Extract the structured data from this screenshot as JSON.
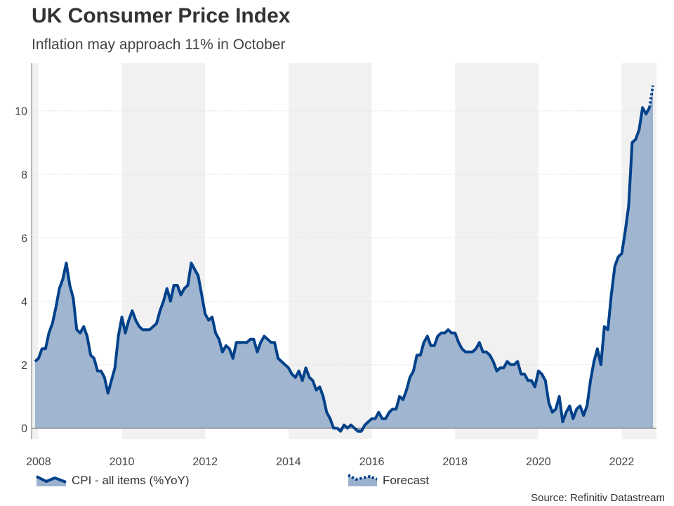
{
  "title": "UK Consumer Price Index",
  "subtitle": "Inflation may approach 11% in October",
  "source": "Source: Refinitiv Datastream",
  "colors": {
    "line": "#00418a",
    "fill": "#9bb1cd",
    "band": "#f1f1f1",
    "grid": "#dddddd"
  },
  "chart_data": {
    "type": "area",
    "title": "UK Consumer Price Index",
    "subtitle": "Inflation may approach 11% in October",
    "xlabel": "",
    "ylabel": "",
    "xlim": [
      "2007-11",
      "2022-11"
    ],
    "ylim": [
      -0.35,
      11.5
    ],
    "x_ticks": [
      "2008",
      "2010",
      "2012",
      "2014",
      "2016",
      "2018",
      "2020",
      "2022"
    ],
    "y_ticks": [
      "0",
      "2",
      "4",
      "6",
      "8",
      "10"
    ],
    "grid": "horizontal dotted",
    "shaded_bands": [
      [
        "2006",
        "2008"
      ],
      [
        "2010",
        "2012"
      ],
      [
        "2014",
        "2016"
      ],
      [
        "2018",
        "2020"
      ],
      [
        "2022",
        "2024"
      ]
    ],
    "legend_position": "bottom",
    "legend": [
      "CPI - all items (%YoY)",
      "Forecast"
    ],
    "series": [
      {
        "name": "CPI - all items (%YoY)",
        "start": "2007-12",
        "frequency": "monthly",
        "values": [
          2.1,
          2.2,
          2.5,
          2.5,
          3.0,
          3.3,
          3.8,
          4.4,
          4.7,
          5.2,
          4.5,
          4.1,
          3.1,
          3.0,
          3.2,
          2.9,
          2.3,
          2.2,
          1.8,
          1.8,
          1.6,
          1.1,
          1.5,
          1.9,
          2.9,
          3.5,
          3.0,
          3.4,
          3.7,
          3.4,
          3.2,
          3.1,
          3.1,
          3.1,
          3.2,
          3.3,
          3.7,
          4.0,
          4.4,
          4.0,
          4.5,
          4.5,
          4.2,
          4.4,
          4.5,
          5.2,
          5.0,
          4.8,
          4.2,
          3.6,
          3.4,
          3.5,
          3.0,
          2.8,
          2.4,
          2.6,
          2.5,
          2.2,
          2.7,
          2.7,
          2.7,
          2.7,
          2.8,
          2.8,
          2.4,
          2.7,
          2.9,
          2.8,
          2.7,
          2.7,
          2.2,
          2.1,
          2.0,
          1.9,
          1.7,
          1.6,
          1.8,
          1.5,
          1.9,
          1.6,
          1.5,
          1.2,
          1.3,
          1.0,
          0.5,
          0.3,
          0.0,
          0.0,
          -0.1,
          0.1,
          0.0,
          0.1,
          0.0,
          -0.1,
          -0.1,
          0.1,
          0.2,
          0.3,
          0.3,
          0.5,
          0.3,
          0.3,
          0.5,
          0.6,
          0.6,
          1.0,
          0.9,
          1.2,
          1.6,
          1.8,
          2.3,
          2.3,
          2.7,
          2.9,
          2.6,
          2.6,
          2.9,
          3.0,
          3.0,
          3.1,
          3.0,
          3.0,
          2.7,
          2.5,
          2.4,
          2.4,
          2.4,
          2.5,
          2.7,
          2.4,
          2.4,
          2.3,
          2.1,
          1.8,
          1.9,
          1.9,
          2.1,
          2.0,
          2.0,
          2.1,
          1.7,
          1.7,
          1.5,
          1.5,
          1.3,
          1.8,
          1.7,
          1.5,
          0.8,
          0.5,
          0.6,
          1.0,
          0.2,
          0.5,
          0.7,
          0.3,
          0.6,
          0.7,
          0.4,
          0.7,
          1.5,
          2.1,
          2.5,
          2.0,
          3.2,
          3.1,
          4.2,
          5.1,
          5.4,
          5.5,
          6.2,
          7.0,
          9.0,
          9.1,
          9.4,
          10.1,
          9.9,
          10.1
        ]
      },
      {
        "name": "Forecast",
        "style": "dotted",
        "points": [
          [
            "2022-09",
            10.1
          ],
          [
            "2022-10",
            10.8
          ]
        ]
      }
    ]
  }
}
